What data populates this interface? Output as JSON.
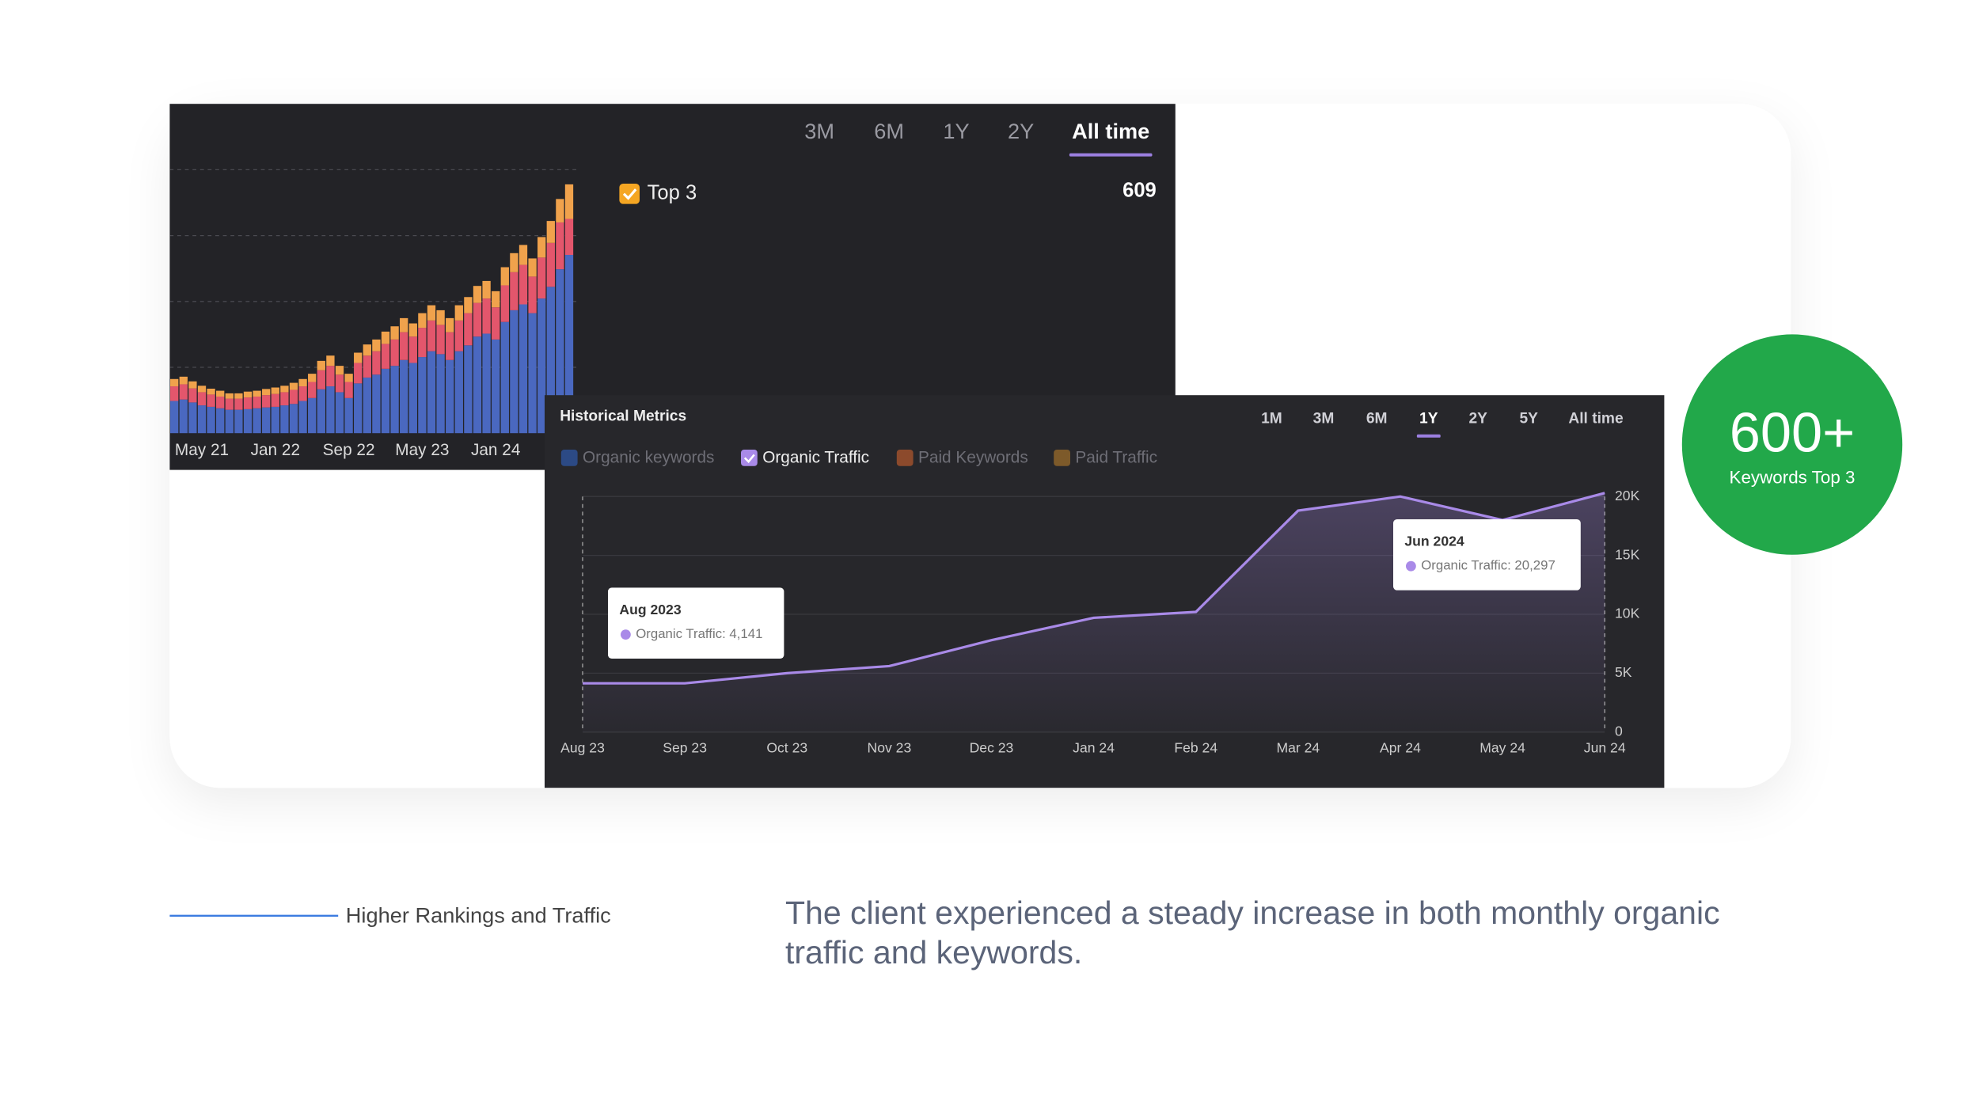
{
  "chart_data": [
    {
      "type": "bar",
      "stacked": true,
      "range_buttons": [
        "3M",
        "6M",
        "1Y",
        "2Y",
        "All time"
      ],
      "active_range": 4,
      "legend": {
        "label": "Top 3",
        "value": 609,
        "color": "#f5a623"
      },
      "categories": [
        null,
        null,
        null,
        "May 21",
        null,
        null,
        null,
        null,
        null,
        null,
        null,
        "Jan 22",
        null,
        null,
        null,
        null,
        null,
        null,
        null,
        "Sep 22",
        null,
        null,
        null,
        null,
        null,
        null,
        null,
        "May 23",
        null,
        null,
        null,
        null,
        null,
        null,
        null,
        "Jan 24",
        null,
        null,
        null,
        null,
        null,
        null,
        null,
        null
      ],
      "series": [
        {
          "color": "#4a68c0",
          "values": [
            110,
            115,
            105,
            95,
            90,
            85,
            80,
            80,
            82,
            85,
            88,
            90,
            95,
            100,
            110,
            120,
            150,
            160,
            140,
            120,
            170,
            190,
            200,
            220,
            230,
            250,
            240,
            260,
            280,
            270,
            250,
            280,
            300,
            330,
            340,
            320,
            380,
            420,
            440,
            410,
            460,
            500,
            560,
            609
          ]
        },
        {
          "color": "#e3566c",
          "values": [
            50,
            52,
            48,
            45,
            42,
            40,
            38,
            38,
            40,
            40,
            42,
            44,
            45,
            48,
            50,
            55,
            65,
            70,
            60,
            55,
            70,
            75,
            80,
            85,
            90,
            95,
            90,
            100,
            105,
            100,
            95,
            105,
            110,
            115,
            120,
            110,
            125,
            130,
            135,
            125,
            140,
            150,
            160,
            123
          ]
        },
        {
          "color": "#f0a24c",
          "values": [
            25,
            26,
            24,
            22,
            20,
            20,
            18,
            18,
            20,
            20,
            21,
            22,
            22,
            24,
            25,
            28,
            32,
            35,
            30,
            28,
            35,
            38,
            40,
            42,
            45,
            48,
            45,
            50,
            52,
            50,
            48,
            52,
            55,
            58,
            60,
            55,
            62,
            65,
            68,
            62,
            70,
            75,
            80,
            118
          ]
        }
      ],
      "ylim": [
        0,
        900
      ]
    },
    {
      "type": "line",
      "title": "Historical Metrics",
      "range_buttons": [
        "1M",
        "3M",
        "6M",
        "1Y",
        "2Y",
        "5Y",
        "All time"
      ],
      "active_range": 3,
      "inactive_legend": [
        {
          "name": "Organic keywords",
          "color": "#2c4a85"
        },
        {
          "name": "Paid Keywords",
          "color": "#8c4a2c"
        },
        {
          "name": "Paid Traffic",
          "color": "#7d5a2a"
        }
      ],
      "categories": [
        "Aug 23",
        "Sep 23",
        "Oct 23",
        "Nov 23",
        "Dec 23",
        "Jan 24",
        "Feb 24",
        "Mar 24",
        "Apr 24",
        "May 24",
        "Jun 24"
      ],
      "series": [
        {
          "name": "Organic Traffic",
          "color": "#a98ae8",
          "values": [
            4141,
            4141,
            5000,
            5600,
            7800,
            9700,
            10200,
            18800,
            20000,
            18000,
            20297
          ]
        }
      ],
      "ylim": [
        0,
        20000
      ],
      "yticks": [
        0,
        {
          "value": 5000,
          "label": "5K"
        },
        {
          "value": 10000,
          "label": "10K"
        },
        {
          "value": 15000,
          "label": "15K"
        },
        {
          "value": 20000,
          "label": "20K"
        }
      ],
      "tooltips": [
        {
          "title": "Aug 2023",
          "label": "Organic Traffic: 4,141"
        },
        {
          "title": "Jun 2024",
          "label": "Organic Traffic: 20,297"
        }
      ]
    }
  ],
  "badge": {
    "value": "600+",
    "label": "Keywords Top 3"
  },
  "caption": {
    "heading": "Higher Rankings and Traffic",
    "text": "The client experienced a steady increase in both monthly organic traffic and keywords."
  }
}
